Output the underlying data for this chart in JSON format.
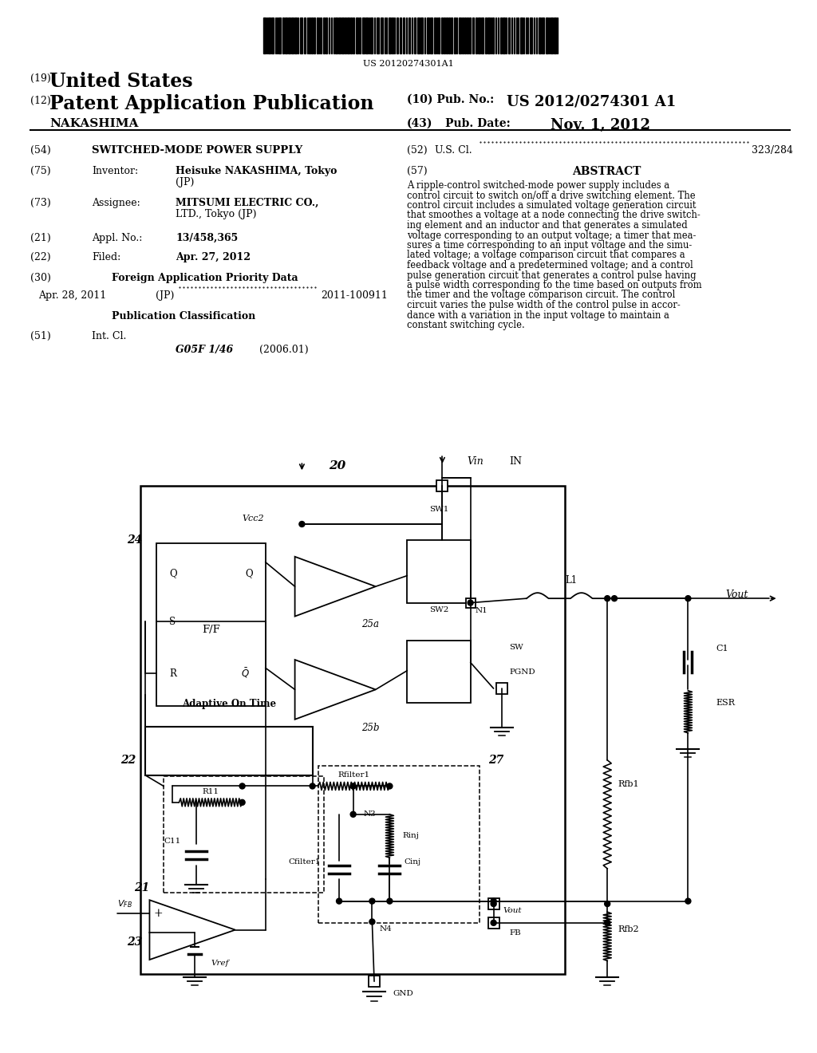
{
  "background_color": "#ffffff",
  "barcode_text": "US 20120274301A1",
  "header": {
    "country_number": "(19)",
    "country": "United States",
    "type_number": "(12)",
    "type": "Patent Application Publication",
    "pub_number_label": "(10) Pub. No.:",
    "pub_number": "US 2012/0274301 A1",
    "inventor_label": "NAKASHIMA",
    "pub_date_number": "(43)",
    "pub_date_label": "Pub. Date:",
    "pub_date": "Nov. 1, 2012"
  },
  "fields": {
    "title_num": "(54)",
    "title": "SWITCHED-MODE POWER SUPPLY",
    "us_cl_num": "(52)",
    "us_cl_label": "U.S. Cl.",
    "us_cl_value": "323/284",
    "inventor_num": "(75)",
    "inventor_label": "Inventor:",
    "inventor_name": "Heisuke NAKASHIMA",
    "inventor_city": "Tokyo (JP)",
    "abstract_num": "(57)",
    "abstract_title": "ABSTRACT",
    "abstract_lines": [
      "A ripple-control switched-mode power supply includes a",
      "control circuit to switch on/off a drive switching element. The",
      "control circuit includes a simulated voltage generation circuit",
      "that smoothes a voltage at a node connecting the drive switch-",
      "ing element and an inductor and that generates a simulated",
      "voltage corresponding to an output voltage; a timer that mea-",
      "sures a time corresponding to an input voltage and the simu-",
      "lated voltage; a voltage comparison circuit that compares a",
      "feedback voltage and a predetermined voltage; and a control",
      "pulse generation circuit that generates a control pulse having",
      "a pulse width corresponding to the time based on outputs from",
      "the timer and the voltage comparison circuit. The control",
      "circuit varies the pulse width of the control pulse in accor-",
      "dance with a variation in the input voltage to maintain a",
      "constant switching cycle."
    ],
    "assignee_num": "(73)",
    "assignee_label": "Assignee:",
    "assignee_name": "MITSUMI ELECTRIC CO.,",
    "assignee_name2": "LTD., Tokyo (JP)",
    "appl_num": "(21)",
    "appl_label": "Appl. No.:",
    "appl_value": "13/458,365",
    "filed_num": "(22)",
    "filed_label": "Filed:",
    "filed_value": "Apr. 27, 2012",
    "priority_num": "(30)",
    "priority_label": "Foreign Application Priority Data",
    "priority_date": "Apr. 28, 2011",
    "priority_country": "(JP)",
    "priority_app": "2011-100911",
    "pub_class_label": "Publication Classification",
    "int_cl_num": "(51)",
    "int_cl_label": "Int. Cl.",
    "int_cl_value": "G05F 1/46",
    "int_cl_year": "(2006.01)"
  }
}
